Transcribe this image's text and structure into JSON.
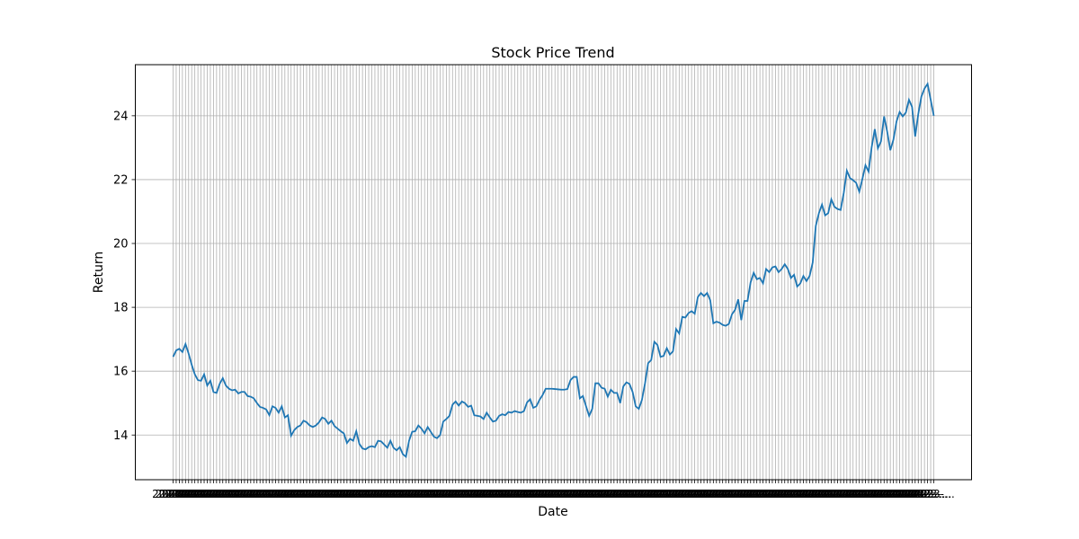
{
  "chart_data": {
    "type": "line",
    "title": "Stock Price Trend",
    "xlabel": "Date",
    "ylabel": "Return",
    "ylim": [
      12.6,
      25.6
    ],
    "yticks": [
      14,
      16,
      18,
      20,
      22,
      24
    ],
    "grid": true,
    "line_color": "#1f77b4",
    "grid_color": "#b0b0b0",
    "x_tick_labels_note": "2023-…",
    "series": [
      {
        "values": [
          16.45,
          16.65,
          16.7,
          16.6,
          16.85,
          16.55,
          16.2,
          15.9,
          15.72,
          15.7,
          15.9,
          15.55,
          15.7,
          15.35,
          15.32,
          15.6,
          15.78,
          15.55,
          15.45,
          15.4,
          15.42,
          15.3,
          15.35,
          15.35,
          15.22,
          15.2,
          15.15,
          15.0,
          14.88,
          14.85,
          14.8,
          14.62,
          14.9,
          14.85,
          14.7,
          14.9,
          14.55,
          14.62,
          13.98,
          14.15,
          14.25,
          14.3,
          14.45,
          14.4,
          14.3,
          14.25,
          14.3,
          14.4,
          14.55,
          14.5,
          14.35,
          14.45,
          14.28,
          14.2,
          14.12,
          14.05,
          13.75,
          13.88,
          13.82,
          14.12,
          13.72,
          13.58,
          13.55,
          13.62,
          13.65,
          13.62,
          13.82,
          13.8,
          13.7,
          13.6,
          13.82,
          13.6,
          13.52,
          13.62,
          13.4,
          13.32,
          13.82,
          14.1,
          14.12,
          14.3,
          14.2,
          14.05,
          14.25,
          14.1,
          13.95,
          13.9,
          14.0,
          14.42,
          14.5,
          14.6,
          14.95,
          15.05,
          14.92,
          15.05,
          15.0,
          14.88,
          14.92,
          14.62,
          14.6,
          14.58,
          14.5,
          14.7,
          14.55,
          14.42,
          14.45,
          14.6,
          14.65,
          14.62,
          14.72,
          14.7,
          14.75,
          14.72,
          14.7,
          14.75,
          15.02,
          15.12,
          14.85,
          14.9,
          15.1,
          15.25,
          15.45,
          15.45,
          15.45,
          15.44,
          15.43,
          15.42,
          15.42,
          15.44,
          15.72,
          15.82,
          15.82,
          15.15,
          15.22,
          14.9,
          14.6,
          14.82,
          15.62,
          15.62,
          15.48,
          15.45,
          15.2,
          15.42,
          15.32,
          15.32,
          15.0,
          15.52,
          15.65,
          15.6,
          15.35,
          14.9,
          14.82,
          15.1,
          15.62,
          16.25,
          16.35,
          16.92,
          16.82,
          16.45,
          16.48,
          16.72,
          16.52,
          16.62,
          17.32,
          17.18,
          17.7,
          17.68,
          17.82,
          17.88,
          17.8,
          18.32,
          18.45,
          18.35,
          18.45,
          18.22,
          17.5,
          17.55,
          17.52,
          17.45,
          17.42,
          17.48,
          17.78,
          17.92,
          18.25,
          17.6,
          18.2,
          18.2,
          18.78,
          19.08,
          18.88,
          18.92,
          18.75,
          19.2,
          19.1,
          19.25,
          19.28,
          19.1,
          19.2,
          19.35,
          19.2,
          18.92,
          19.02,
          18.65,
          18.75,
          18.98,
          18.82,
          18.98,
          19.4,
          20.55,
          20.95,
          21.22,
          20.88,
          20.95,
          21.38,
          21.15,
          21.08,
          21.05,
          21.58,
          22.28,
          22.05,
          21.98,
          21.9,
          21.62,
          22.02,
          22.45,
          22.25,
          23.02,
          23.58,
          22.98,
          23.2,
          23.98,
          23.5,
          22.92,
          23.25,
          23.82,
          24.12,
          23.98,
          24.1,
          24.5,
          24.28,
          23.35,
          24.05,
          24.6,
          24.85,
          25.0,
          24.5,
          24.0
        ]
      }
    ]
  }
}
